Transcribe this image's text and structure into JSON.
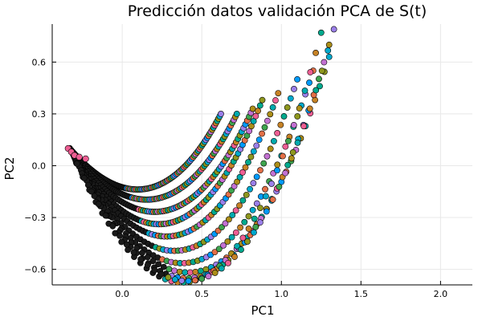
{
  "chart_data": {
    "type": "scatter",
    "title": "Predicción datos validación PCA de S(t)",
    "xlabel": "PC1",
    "ylabel": "PC2",
    "xlim": [
      -0.44,
      2.2
    ],
    "ylim": [
      -0.69,
      0.82
    ],
    "xticks": [
      0.0,
      0.5,
      1.0,
      1.5,
      2.0
    ],
    "xtick_labels": [
      "0.0",
      "0.5",
      "1.0",
      "1.5",
      "2.0"
    ],
    "yticks": [
      -0.6,
      -0.3,
      0.0,
      0.3,
      0.6
    ],
    "ytick_labels": [
      "−0.6",
      "−0.3",
      "0.0",
      "0.3",
      "0.6"
    ],
    "grid": true,
    "legend": "none",
    "origin": [
      -0.33,
      0.1
    ],
    "palette": [
      "#009AFA",
      "#E36F47",
      "#3EA44E",
      "#C371D2",
      "#AC8E18",
      "#00AAAE",
      "#ED5E93",
      "#C68225",
      "#00A98D",
      "#8E971E",
      "#00A9CD",
      "#9B7FE9"
    ],
    "series": [
      {
        "name": "",
        "end": [
          0.62,
          0.3
        ],
        "bottom_y": -0.13,
        "points": 110
      },
      {
        "name": "",
        "end": [
          0.72,
          0.3
        ],
        "bottom_y": -0.19,
        "points": 100
      },
      {
        "name": "",
        "end": [
          0.82,
          0.33
        ],
        "bottom_y": -0.26,
        "points": 90
      },
      {
        "name": "",
        "end": [
          0.88,
          0.38
        ],
        "bottom_y": -0.33,
        "points": 80
      },
      {
        "name": "",
        "end": [
          0.98,
          0.42
        ],
        "bottom_y": -0.4,
        "points": 70
      },
      {
        "name": "",
        "end": [
          1.1,
          0.5
        ],
        "bottom_y": -0.48,
        "points": 62
      },
      {
        "name": "",
        "end": [
          1.2,
          0.55
        ],
        "bottom_y": -0.55,
        "points": 56
      },
      {
        "name": "",
        "end": [
          1.3,
          0.63
        ],
        "bottom_y": -0.6,
        "points": 50
      },
      {
        "name": "",
        "end": [
          1.3,
          0.7
        ],
        "bottom_y": -0.63,
        "points": 46
      },
      {
        "name": "",
        "end": [
          1.25,
          0.77
        ],
        "bottom_y": -0.65,
        "points": 42
      },
      {
        "name": "",
        "end": [
          1.33,
          0.79
        ],
        "bottom_y": -0.64,
        "points": 40
      }
    ],
    "highlight": [
      [
        -0.34,
        0.1
      ],
      [
        -0.32,
        0.08
      ],
      [
        -0.3,
        0.06
      ],
      [
        -0.27,
        0.05
      ],
      [
        -0.23,
        0.04
      ]
    ]
  }
}
